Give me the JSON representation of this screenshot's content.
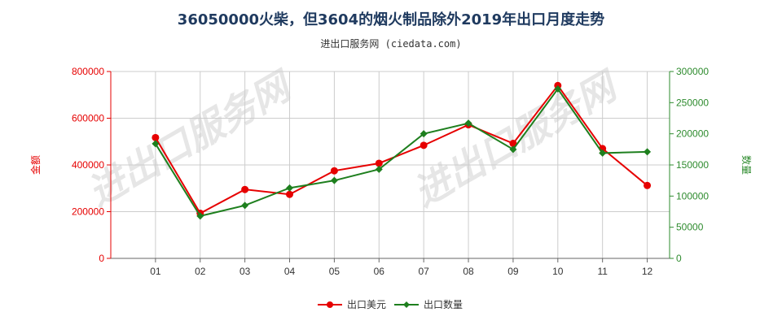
{
  "chart_data": {
    "type": "line",
    "title": "36050000火柴，但3604的烟火制品除外2019年出口月度走势",
    "subtitle": "进出口服务网 (ciedata.com)",
    "watermark": "进出口服务网",
    "categories": [
      "01",
      "02",
      "03",
      "04",
      "05",
      "06",
      "07",
      "08",
      "09",
      "10",
      "11",
      "12"
    ],
    "ylabel_left": "金额",
    "ylabel_right": "数量",
    "ylim_left": [
      0,
      800000
    ],
    "ylim_right": [
      0,
      300000
    ],
    "yticks_left": [
      "0",
      "200000",
      "400000",
      "600000",
      "800000"
    ],
    "yticks_right": [
      "0",
      "50000",
      "100000",
      "150000",
      "200000",
      "250000",
      "300000"
    ],
    "grid": true,
    "legend_position": "bottom",
    "series": [
      {
        "name": "出口美元",
        "axis": "left",
        "color": "#e60000",
        "values": [
          517000,
          193000,
          295000,
          274000,
          375000,
          407000,
          484000,
          572000,
          492000,
          740000,
          470000,
          312000
        ]
      },
      {
        "name": "出口数量",
        "axis": "right",
        "color": "#1e7f1e",
        "values": [
          184000,
          68000,
          85000,
          113000,
          125000,
          143000,
          200000,
          217000,
          175000,
          272000,
          169000,
          171000
        ]
      }
    ]
  }
}
